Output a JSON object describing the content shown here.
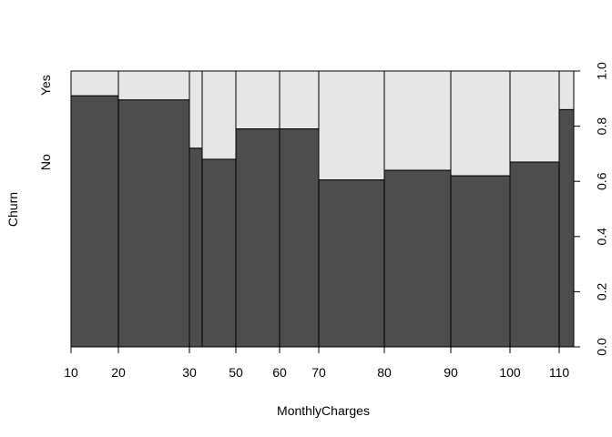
{
  "chart_data": {
    "type": "spineplot",
    "xlabel": "MonthlyCharges",
    "ylabel": "Churn",
    "categories": [
      "No",
      "Yes"
    ],
    "colors": {
      "No": "#4d4d4d",
      "Yes": "#e6e6e6"
    },
    "x_breaks": [
      10,
      20,
      30,
      33,
      40,
      50,
      60,
      70,
      80,
      90,
      100,
      110,
      120
    ],
    "x_tick_labels": [
      "10",
      "20",
      "30",
      "50",
      "60",
      "70",
      "80",
      "90",
      "100",
      "110"
    ],
    "bins": [
      {
        "from": 10,
        "to": 20,
        "no_fraction": 0.91
      },
      {
        "from": 20,
        "to": 30,
        "no_fraction": 0.895
      },
      {
        "from": 30,
        "to": 33,
        "no_fraction": 0.72
      },
      {
        "from": 33,
        "to": 40,
        "no_fraction": 0.68
      },
      {
        "from": 40,
        "to": 50,
        "no_fraction": 0.79
      },
      {
        "from": 50,
        "to": 60,
        "no_fraction": 0.79
      },
      {
        "from": 60,
        "to": 70,
        "no_fraction": 0.605
      },
      {
        "from": 70,
        "to": 80,
        "no_fraction": 0.64
      },
      {
        "from": 80,
        "to": 90,
        "no_fraction": 0.62
      },
      {
        "from": 90,
        "to": 100,
        "no_fraction": 0.67
      },
      {
        "from": 100,
        "to": 110,
        "no_fraction": 0.86
      }
    ],
    "y_right_ticks": [
      "0.0",
      "0.2",
      "0.4",
      "0.6",
      "0.8",
      "1.0"
    ],
    "ylim": [
      0,
      1
    ]
  }
}
